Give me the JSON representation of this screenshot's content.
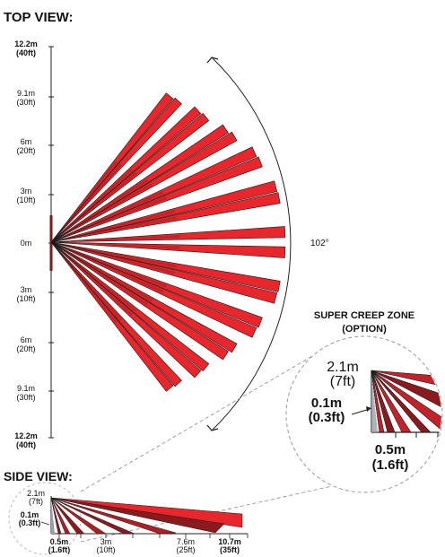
{
  "top_view": {
    "title": "TOP VIEW:",
    "angle": "102°",
    "y_labels": [
      {
        "m": "12.2m",
        "ft": "(40ft)",
        "bold": true
      },
      {
        "m": "9.1m",
        "ft": "(30ft)",
        "bold": false
      },
      {
        "m": "6m",
        "ft": "(20ft)",
        "bold": false
      },
      {
        "m": "3m",
        "ft": "(10ft)",
        "bold": false
      },
      {
        "m": "0m",
        "ft": "",
        "bold": false
      },
      {
        "m": "3m",
        "ft": "(10ft)",
        "bold": false
      },
      {
        "m": "6m",
        "ft": "(20ft)",
        "bold": false
      },
      {
        "m": "9.1m",
        "ft": "(30ft)",
        "bold": false
      },
      {
        "m": "12.2m",
        "ft": "(40ft)",
        "bold": true
      }
    ]
  },
  "creep_zone": {
    "title_line1": "SUPER CREEP ZONE",
    "title_line2": "(OPTION)",
    "height_m": "2.1m",
    "height_ft": "(7ft)",
    "offset_m": "0.1m",
    "offset_ft": "(0.3ft)",
    "depth_m": "0.5m",
    "depth_ft": "(1.6ft)"
  },
  "side_view": {
    "title": "SIDE VIEW:",
    "height_m": "2.1m",
    "height_ft": "(7ft)",
    "offset_m": "0.1m",
    "offset_ft": "(0.3ft)",
    "x_labels": [
      {
        "m": "0.5m",
        "ft": "(1.6ft)",
        "bold": true
      },
      {
        "m": "3m",
        "ft": "(10ft)",
        "bold": false
      },
      {
        "m": "7.6m",
        "ft": "(25ft)",
        "bold": false
      },
      {
        "m": "10.7m",
        "ft": "(35ft)",
        "bold": true
      }
    ]
  },
  "colors": {
    "beam_red": "#e8262b",
    "beam_dark": "#8a1a1e",
    "outline": "#1a1a1a"
  }
}
